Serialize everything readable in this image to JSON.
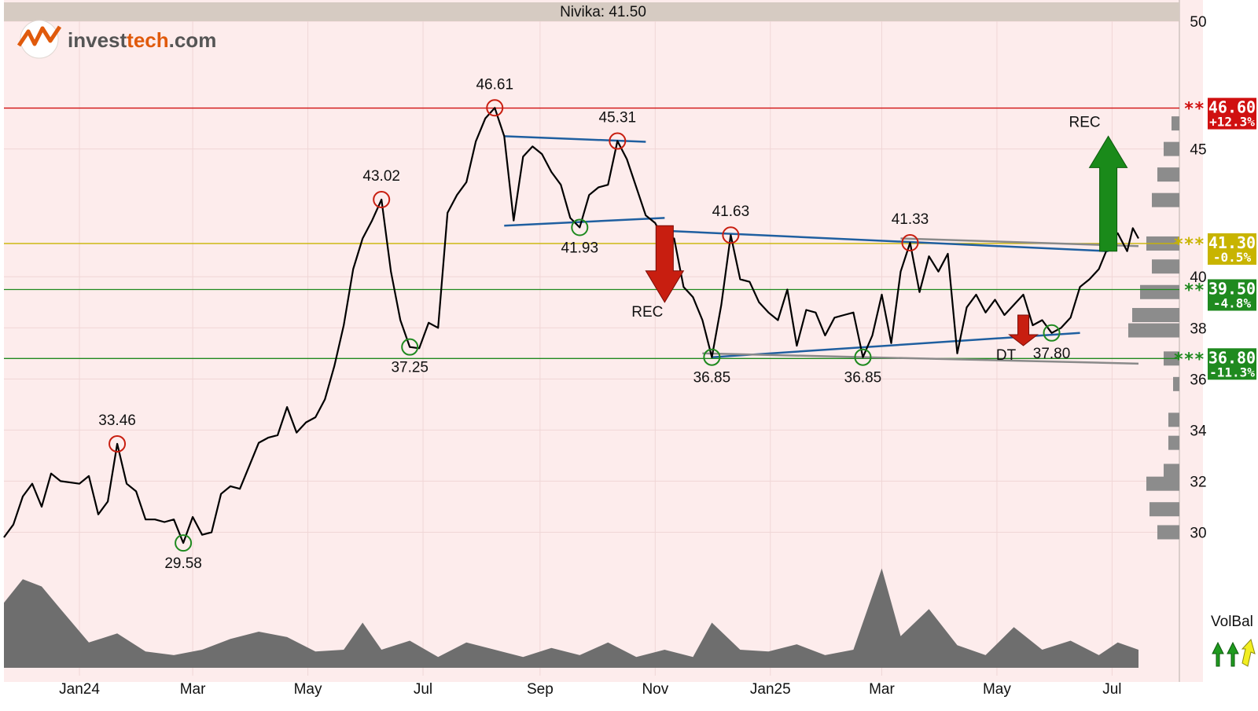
{
  "header": {
    "title": "Nivika: 41.50"
  },
  "logo": {
    "text_a": "invest",
    "text_b": "tech",
    "text_c": ".com"
  },
  "colors": {
    "bg": "#fdecec",
    "header": "#d6cbc2",
    "price": "#000000",
    "up": "#c81e10",
    "down": "#1f7a1f",
    "trend": "#1f5fa0",
    "resist": "#d01010",
    "mid": "#c8b400",
    "support": "#1f8a1f",
    "volume": "#6e6e6e"
  },
  "chart_data": {
    "type": "line",
    "title": "Nivika: 41.50",
    "xlabel": "",
    "ylabel": "",
    "ylim": [
      29.0,
      50.0
    ],
    "y_ticks": [
      30,
      32,
      34,
      36,
      38,
      40,
      45,
      50
    ],
    "x_ticks": [
      {
        "date": "2024-01-01",
        "label": "Jan24"
      },
      {
        "date": "2024-03-01",
        "label": "Mar"
      },
      {
        "date": "2024-05-01",
        "label": "May"
      },
      {
        "date": "2024-07-01",
        "label": "Jul"
      },
      {
        "date": "2024-09-01",
        "label": "Sep"
      },
      {
        "date": "2024-11-01",
        "label": "Nov"
      },
      {
        "date": "2025-01-01",
        "label": "Jan25"
      },
      {
        "date": "2025-03-01",
        "label": "Mar"
      },
      {
        "date": "2025-05-01",
        "label": "May"
      },
      {
        "date": "2025-07-01",
        "label": "Jul"
      }
    ],
    "x_range": [
      "2023-11-22",
      "2025-07-15"
    ],
    "series": [
      {
        "values": [
          [
            "2023-11-22",
            29.8
          ],
          [
            "2023-11-27",
            30.3
          ],
          [
            "2023-12-02",
            31.4
          ],
          [
            "2023-12-07",
            31.9
          ],
          [
            "2023-12-12",
            31.0
          ],
          [
            "2023-12-17",
            32.3
          ],
          [
            "2023-12-22",
            32.0
          ],
          [
            "2024-01-01",
            31.9
          ],
          [
            "2024-01-06",
            32.2
          ],
          [
            "2024-01-11",
            30.7
          ],
          [
            "2024-01-16",
            31.2
          ],
          [
            "2024-01-21",
            33.46
          ],
          [
            "2024-01-26",
            31.9
          ],
          [
            "2024-01-31",
            31.6
          ],
          [
            "2024-02-05",
            30.5
          ],
          [
            "2024-02-10",
            30.5
          ],
          [
            "2024-02-15",
            30.4
          ],
          [
            "2024-02-20",
            30.5
          ],
          [
            "2024-02-25",
            29.58
          ],
          [
            "2024-03-01",
            30.6
          ],
          [
            "2024-03-06",
            29.9
          ],
          [
            "2024-03-11",
            30.0
          ],
          [
            "2024-03-16",
            31.5
          ],
          [
            "2024-03-21",
            31.8
          ],
          [
            "2024-03-26",
            31.7
          ],
          [
            "2024-03-31",
            32.6
          ],
          [
            "2024-04-05",
            33.5
          ],
          [
            "2024-04-10",
            33.7
          ],
          [
            "2024-04-15",
            33.8
          ],
          [
            "2024-04-20",
            34.9
          ],
          [
            "2024-04-25",
            33.9
          ],
          [
            "2024-04-30",
            34.3
          ],
          [
            "2024-05-05",
            34.5
          ],
          [
            "2024-05-10",
            35.2
          ],
          [
            "2024-05-15",
            36.5
          ],
          [
            "2024-05-20",
            38.1
          ],
          [
            "2024-05-25",
            40.3
          ],
          [
            "2024-05-30",
            41.5
          ],
          [
            "2024-06-04",
            42.2
          ],
          [
            "2024-06-09",
            43.02
          ],
          [
            "2024-06-14",
            40.2
          ],
          [
            "2024-06-19",
            38.3
          ],
          [
            "2024-06-24",
            37.25
          ],
          [
            "2024-06-29",
            37.2
          ],
          [
            "2024-07-04",
            38.2
          ],
          [
            "2024-07-09",
            38.0
          ],
          [
            "2024-07-14",
            42.5
          ],
          [
            "2024-07-19",
            43.2
          ],
          [
            "2024-07-24",
            43.7
          ],
          [
            "2024-07-29",
            45.3
          ],
          [
            "2024-08-03",
            46.2
          ],
          [
            "2024-08-08",
            46.61
          ],
          [
            "2024-08-13",
            45.5
          ],
          [
            "2024-08-18",
            42.2
          ],
          [
            "2024-08-23",
            44.7
          ],
          [
            "2024-08-28",
            45.1
          ],
          [
            "2024-09-02",
            44.8
          ],
          [
            "2024-09-07",
            44.1
          ],
          [
            "2024-09-12",
            43.6
          ],
          [
            "2024-09-17",
            42.3
          ],
          [
            "2024-09-22",
            41.93
          ],
          [
            "2024-09-27",
            43.2
          ],
          [
            "2024-10-02",
            43.5
          ],
          [
            "2024-10-07",
            43.6
          ],
          [
            "2024-10-12",
            45.31
          ],
          [
            "2024-10-17",
            44.6
          ],
          [
            "2024-10-22",
            43.5
          ],
          [
            "2024-10-27",
            42.4
          ],
          [
            "2024-11-01",
            42.1
          ],
          [
            "2024-11-06",
            41.4
          ],
          [
            "2024-11-11",
            41.5
          ],
          [
            "2024-11-16",
            39.6
          ],
          [
            "2024-11-21",
            39.2
          ],
          [
            "2024-11-26",
            38.3
          ],
          [
            "2024-12-01",
            36.85
          ],
          [
            "2024-12-06",
            38.9
          ],
          [
            "2024-12-11",
            41.63
          ],
          [
            "2024-12-16",
            39.9
          ],
          [
            "2024-12-21",
            39.8
          ],
          [
            "2024-12-26",
            39.0
          ],
          [
            "2024-12-31",
            38.6
          ],
          [
            "2025-01-05",
            38.3
          ],
          [
            "2025-01-10",
            39.5
          ],
          [
            "2025-01-15",
            37.3
          ],
          [
            "2025-01-20",
            38.7
          ],
          [
            "2025-01-25",
            38.6
          ],
          [
            "2025-01-30",
            37.7
          ],
          [
            "2025-02-04",
            38.4
          ],
          [
            "2025-02-09",
            38.5
          ],
          [
            "2025-02-14",
            38.6
          ],
          [
            "2025-02-19",
            36.85
          ],
          [
            "2025-02-24",
            37.7
          ],
          [
            "2025-03-01",
            39.3
          ],
          [
            "2025-03-06",
            37.4
          ],
          [
            "2025-03-11",
            40.2
          ],
          [
            "2025-03-16",
            41.33
          ],
          [
            "2025-03-21",
            39.4
          ],
          [
            "2025-03-26",
            40.8
          ],
          [
            "2025-03-31",
            40.2
          ],
          [
            "2025-04-05",
            40.9
          ],
          [
            "2025-04-10",
            37.0
          ],
          [
            "2025-04-15",
            38.8
          ],
          [
            "2025-04-20",
            39.3
          ],
          [
            "2025-04-25",
            38.6
          ],
          [
            "2025-04-30",
            39.1
          ],
          [
            "2025-05-05",
            38.5
          ],
          [
            "2025-05-10",
            38.9
          ],
          [
            "2025-05-15",
            39.3
          ],
          [
            "2025-05-20",
            38.1
          ],
          [
            "2025-05-25",
            38.3
          ],
          [
            "2025-05-30",
            37.8
          ],
          [
            "2025-06-04",
            38.0
          ],
          [
            "2025-06-09",
            38.4
          ],
          [
            "2025-06-14",
            39.6
          ],
          [
            "2025-06-19",
            39.9
          ],
          [
            "2025-06-24",
            40.3
          ],
          [
            "2025-06-29",
            41.2
          ],
          [
            "2025-07-04",
            41.7
          ],
          [
            "2025-07-09",
            41.0
          ],
          [
            "2025-07-12",
            41.9
          ],
          [
            "2025-07-15",
            41.5
          ]
        ]
      }
    ],
    "extrema": [
      {
        "date": "2024-01-21",
        "value": 33.46,
        "label": "33.46",
        "kind": "high"
      },
      {
        "date": "2024-02-25",
        "value": 29.58,
        "label": "29.58",
        "kind": "low"
      },
      {
        "date": "2024-06-09",
        "value": 43.02,
        "label": "43.02",
        "kind": "high"
      },
      {
        "date": "2024-06-24",
        "value": 37.25,
        "label": "37.25",
        "kind": "low"
      },
      {
        "date": "2024-08-08",
        "value": 46.61,
        "label": "46.61",
        "kind": "high"
      },
      {
        "date": "2024-09-22",
        "value": 41.93,
        "label": "41.93",
        "kind": "low"
      },
      {
        "date": "2024-10-12",
        "value": 45.31,
        "label": "45.31",
        "kind": "high"
      },
      {
        "date": "2024-12-01",
        "value": 36.85,
        "label": "36.85",
        "kind": "low"
      },
      {
        "date": "2024-12-11",
        "value": 41.63,
        "label": "41.63",
        "kind": "high"
      },
      {
        "date": "2025-02-19",
        "value": 36.85,
        "label": "36.85",
        "kind": "low"
      },
      {
        "date": "2025-03-16",
        "value": 41.33,
        "label": "41.33",
        "kind": "high"
      },
      {
        "date": "2025-05-30",
        "value": 37.8,
        "label": "37.80",
        "kind": "low"
      }
    ],
    "levels": [
      {
        "value": 46.6,
        "label": "46.60",
        "pct": "+12.3%",
        "stars": "**",
        "color": "resist"
      },
      {
        "value": 41.3,
        "label": "41.30",
        "pct": "-0.5%",
        "stars": "***",
        "color": "mid"
      },
      {
        "value": 39.5,
        "label": "39.50",
        "pct": "-4.8%",
        "stars": "**",
        "color": "support"
      },
      {
        "value": 36.8,
        "label": "36.80",
        "pct": "-11.3%",
        "stars": "***",
        "color": "support"
      }
    ],
    "trend_lines": [
      {
        "from": [
          "2024-08-13",
          45.5
        ],
        "to": [
          "2024-10-27",
          45.28
        ],
        "color": "trend"
      },
      {
        "from": [
          "2024-08-13",
          42.0
        ],
        "to": [
          "2024-11-06",
          42.3
        ],
        "color": "trend"
      },
      {
        "from": [
          "2024-11-06",
          41.8
        ],
        "to": [
          "2025-06-29",
          41.0
        ],
        "color": "trend"
      },
      {
        "from": [
          "2024-12-01",
          36.85
        ],
        "to": [
          "2025-06-14",
          37.8
        ],
        "color": "trend"
      },
      {
        "from": [
          "2024-11-26",
          37.0
        ],
        "to": [
          "2025-07-15",
          36.6
        ],
        "color": "gray"
      },
      {
        "from": [
          "2025-03-11",
          41.5
        ],
        "to": [
          "2025-07-15",
          41.2
        ],
        "color": "gray"
      }
    ],
    "signals": [
      {
        "date": "2024-11-06",
        "label": "REC",
        "direction": "down",
        "from": 42.0,
        "to": 39.0
      },
      {
        "date": "2025-06-29",
        "label": "REC",
        "direction": "up",
        "from": 41.0,
        "to": 45.5
      },
      {
        "date": "2025-05-15",
        "label": "DT",
        "direction": "down",
        "from": 38.5,
        "to": 37.3
      }
    ],
    "volume": [
      [
        "2023-11-22",
        72
      ],
      [
        "2023-12-02",
        98
      ],
      [
        "2023-12-12",
        90
      ],
      [
        "2023-12-22",
        65
      ],
      [
        "2024-01-06",
        28
      ],
      [
        "2024-01-21",
        38
      ],
      [
        "2024-02-05",
        18
      ],
      [
        "2024-02-20",
        14
      ],
      [
        "2024-03-06",
        20
      ],
      [
        "2024-03-21",
        32
      ],
      [
        "2024-04-05",
        40
      ],
      [
        "2024-04-20",
        34
      ],
      [
        "2024-05-05",
        18
      ],
      [
        "2024-05-20",
        20
      ],
      [
        "2024-05-30",
        50
      ],
      [
        "2024-06-09",
        20
      ],
      [
        "2024-06-24",
        30
      ],
      [
        "2024-07-09",
        12
      ],
      [
        "2024-07-24",
        28
      ],
      [
        "2024-08-08",
        20
      ],
      [
        "2024-08-23",
        12
      ],
      [
        "2024-09-07",
        22
      ],
      [
        "2024-09-22",
        14
      ],
      [
        "2024-10-07",
        28
      ],
      [
        "2024-10-22",
        12
      ],
      [
        "2024-11-06",
        20
      ],
      [
        "2024-11-21",
        12
      ],
      [
        "2024-12-01",
        50
      ],
      [
        "2024-12-16",
        20
      ],
      [
        "2024-12-31",
        18
      ],
      [
        "2025-01-15",
        26
      ],
      [
        "2025-01-30",
        14
      ],
      [
        "2025-02-14",
        20
      ],
      [
        "2025-03-01",
        110
      ],
      [
        "2025-03-11",
        35
      ],
      [
        "2025-03-26",
        65
      ],
      [
        "2025-04-10",
        25
      ],
      [
        "2025-04-25",
        14
      ],
      [
        "2025-05-10",
        45
      ],
      [
        "2025-05-25",
        20
      ],
      [
        "2025-06-09",
        30
      ],
      [
        "2025-06-24",
        14
      ],
      [
        "2025-07-04",
        28
      ],
      [
        "2025-07-15",
        20
      ]
    ],
    "volume_profile": [
      [
        30.0,
        28
      ],
      [
        30.9,
        38
      ],
      [
        31.9,
        42
      ],
      [
        32.4,
        20
      ],
      [
        33.5,
        14
      ],
      [
        34.4,
        14
      ],
      [
        35.8,
        8
      ],
      [
        36.8,
        20
      ],
      [
        37.9,
        65
      ],
      [
        38.5,
        60
      ],
      [
        39.4,
        50
      ],
      [
        40.4,
        35
      ],
      [
        41.3,
        42
      ],
      [
        43.0,
        35
      ],
      [
        44.0,
        28
      ],
      [
        45.0,
        20
      ],
      [
        46.0,
        10
      ]
    ],
    "indicator": {
      "label": "VolBal"
    }
  }
}
